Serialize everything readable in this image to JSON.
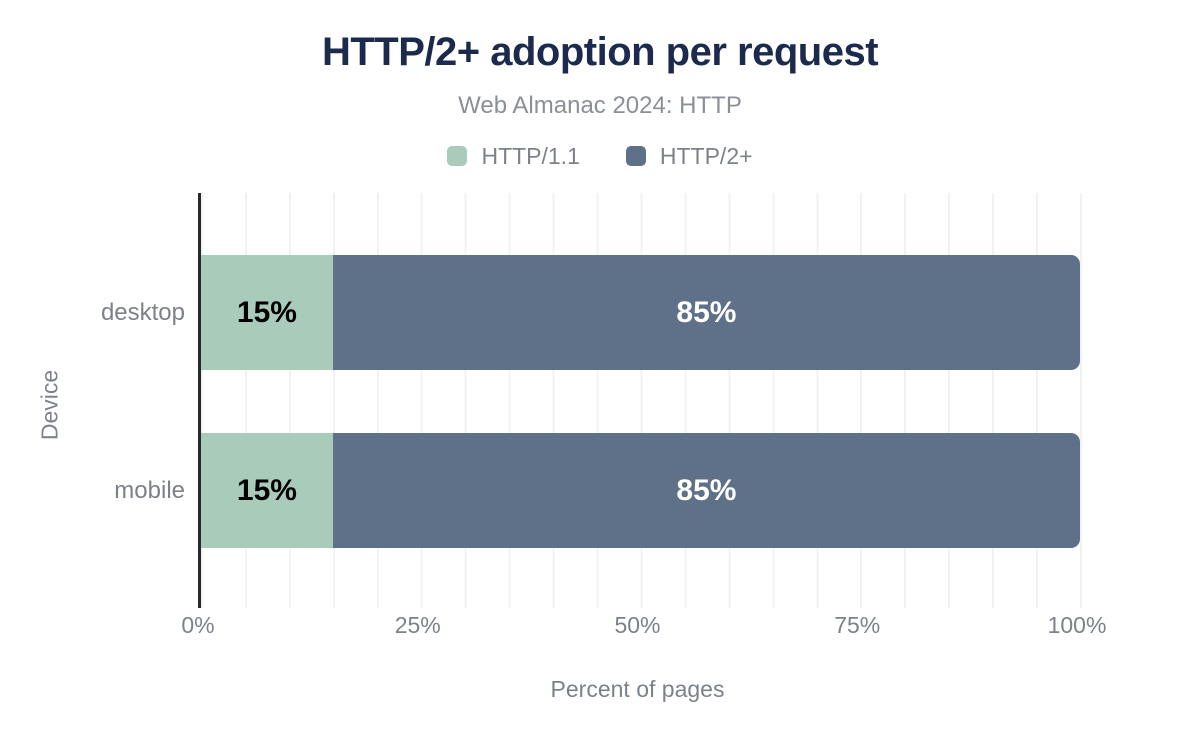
{
  "chart_data": {
    "type": "bar",
    "orientation": "horizontal",
    "stacked": true,
    "title": "HTTP/2+ adoption per request",
    "subtitle": "Web Almanac 2024: HTTP",
    "xlabel": "Percent of pages",
    "ylabel": "Device",
    "categories": [
      "desktop",
      "mobile"
    ],
    "series": [
      {
        "name": "HTTP/1.1",
        "color": "#a8cbba",
        "label_color": "#000000",
        "values": [
          15,
          15
        ]
      },
      {
        "name": "HTTP/2+",
        "color": "#5f7089",
        "label_color": "#ffffff",
        "values": [
          85,
          85
        ]
      }
    ],
    "value_suffix": "%",
    "xlim": [
      0,
      100
    ],
    "xticks": [
      "0%",
      "25%",
      "50%",
      "75%",
      "100%"
    ],
    "grid": {
      "show": true,
      "step_percent": 5,
      "color": "#f1f3f3"
    },
    "legend_position": "top",
    "colors": {
      "title": "#1c2b4d",
      "subtitle": "#8b9096",
      "axis_text": "#7d828a",
      "axis_line": "#26282d",
      "background": "#ffffff"
    }
  }
}
